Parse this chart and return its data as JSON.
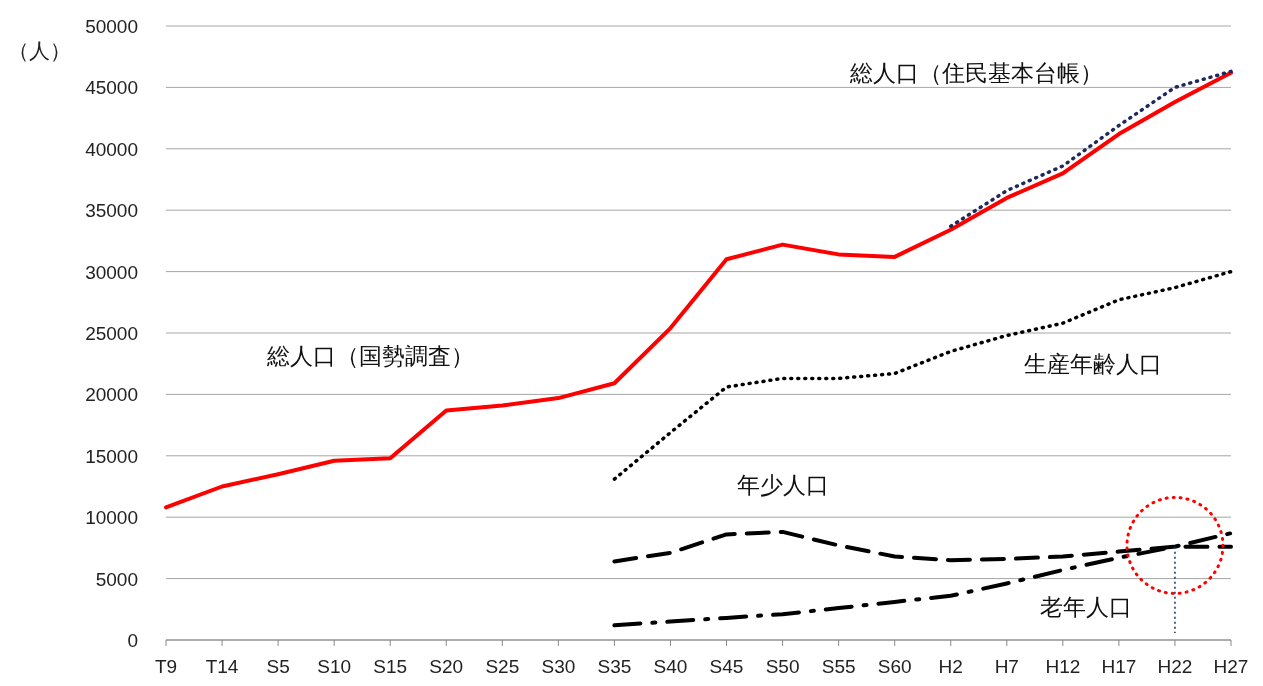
{
  "chart_data": {
    "type": "line",
    "ylabel": "（人）",
    "categories": [
      "T9",
      "T14",
      "S5",
      "S10",
      "S15",
      "S20",
      "S25",
      "S30",
      "S35",
      "S40",
      "S45",
      "S50",
      "S55",
      "S60",
      "H2",
      "H7",
      "H12",
      "H17",
      "H22",
      "H27"
    ],
    "ylim": [
      0,
      50000
    ],
    "yticks": [
      0,
      5000,
      10000,
      15000,
      20000,
      25000,
      30000,
      35000,
      40000,
      45000,
      50000
    ],
    "grid": "y",
    "marker": "none",
    "series": [
      {
        "name": "総人口（国勢調査）",
        "color": "#ff0000",
        "line_style": "solid",
        "values": [
          10800,
          12500,
          13500,
          14600,
          14800,
          18700,
          19100,
          19700,
          20900,
          25400,
          31000,
          32200,
          31400,
          31200,
          33400,
          36000,
          38000,
          41200,
          43800,
          46200
        ]
      },
      {
        "name": "総人口（住民基本台帳）",
        "color": "#1f2a5c",
        "line_style": "dotted",
        "values": [
          null,
          null,
          null,
          null,
          null,
          null,
          null,
          null,
          null,
          null,
          null,
          null,
          null,
          null,
          33700,
          36600,
          38600,
          41900,
          45000,
          46300
        ]
      },
      {
        "name": "生産年齢人口",
        "color": "#000000",
        "line_style": "dotted",
        "values": [
          null,
          null,
          null,
          null,
          null,
          null,
          null,
          null,
          13100,
          16900,
          20600,
          21300,
          21300,
          21700,
          23500,
          24800,
          25800,
          27700,
          28700,
          30000
        ]
      },
      {
        "name": "年少人口",
        "color": "#000000",
        "line_style": "dashed",
        "values": [
          null,
          null,
          null,
          null,
          null,
          null,
          null,
          null,
          6400,
          7100,
          8600,
          8800,
          7700,
          6800,
          6500,
          6600,
          6800,
          7200,
          7600,
          7600
        ]
      },
      {
        "name": "老年人口",
        "color": "#000000",
        "line_style": "dashdot",
        "values": [
          null,
          null,
          null,
          null,
          null,
          null,
          null,
          null,
          1200,
          1500,
          1800,
          2100,
          2600,
          3100,
          3600,
          4600,
          5700,
          6700,
          7600,
          8700
        ]
      }
    ]
  }
}
